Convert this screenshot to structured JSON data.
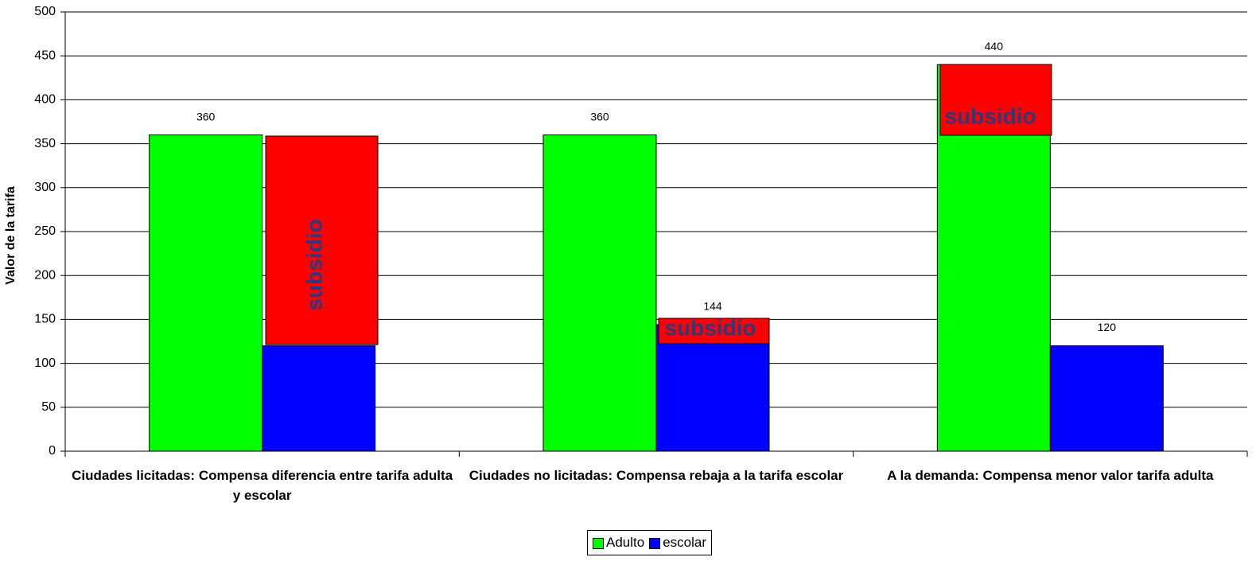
{
  "chart_data": {
    "type": "bar",
    "categories": [
      "Ciudades licitadas: Compensa diferencia entre tarifa adulta y escolar",
      "Ciudades no licitadas: Compensa rebaja a la tarifa escolar",
      "A la demanda: Compensa menor valor tarifa adulta"
    ],
    "series": [
      {
        "name": "Adulto",
        "color": "#00ff00",
        "values": [
          360,
          360,
          440
        ]
      },
      {
        "name": "escolar",
        "color": "#0000ff",
        "values": [
          120,
          144,
          120
        ]
      }
    ],
    "y_label": "Valor de la tarifa",
    "ylim": [
      0,
      500
    ],
    "yticks": [
      0,
      50,
      100,
      150,
      200,
      250,
      300,
      350,
      400,
      450,
      500
    ],
    "grid": true,
    "legend": "bottom",
    "annotations": [
      "subsidio",
      "subsidio",
      "subsidio"
    ]
  }
}
